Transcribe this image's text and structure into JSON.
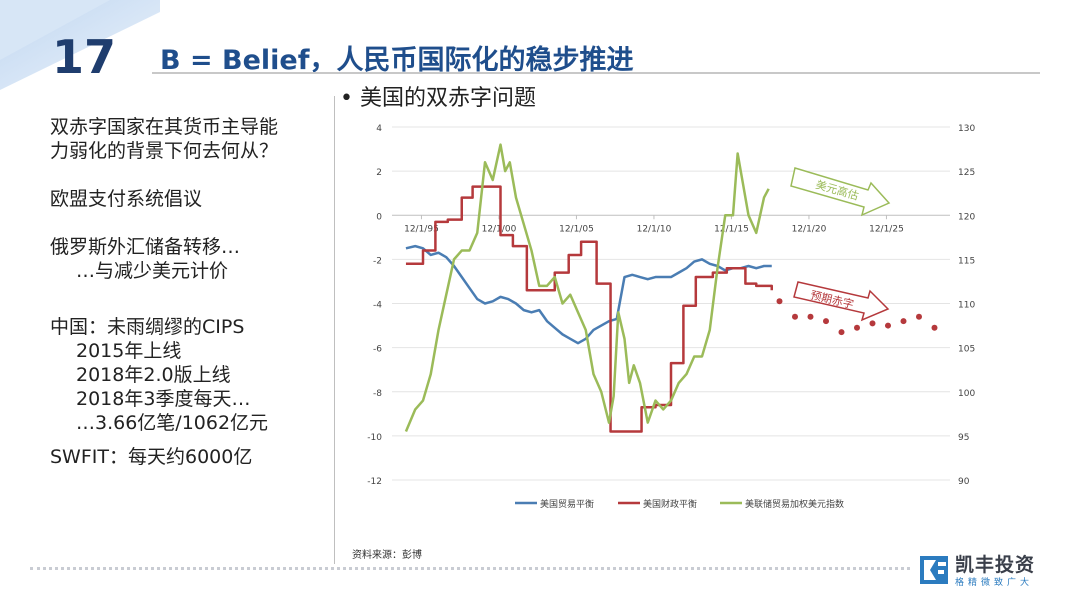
{
  "slide": {
    "number": "17",
    "title": "B = Belief，人民币国际化的稳步推进"
  },
  "left_text": {
    "lines": [
      "双赤字国家在其货币主导能",
      "力弱化的背景下何去何从？",
      "",
      "欧盟支付系统倡议",
      "",
      "俄罗斯外汇储备转移…",
      "   …与减少美元计价",
      "",
      "",
      "中国：未雨绸缪的CIPS",
      "   2015年上线",
      "   2018年2.0版上线",
      "   2018年3季度每天…",
      "   …3.66亿笔/1062亿元",
      "",
      "SWFIT：每天约6000亿"
    ]
  },
  "chart_title": "• 美国的双赤字问题",
  "source": "资料来源：彭博",
  "logo": {
    "name": "凯丰投资",
    "tagline": "格精微致广大"
  },
  "colors": {
    "trade": "#4a7db3",
    "fiscal": "#b5393c",
    "dollar": "#9bbb59",
    "forecast": "#b5393c",
    "accent": "#1f4e8c"
  },
  "chart_data": {
    "type": "line",
    "x_ticks": [
      "12/1/95",
      "12/1/00",
      "12/1/05",
      "12/1/10",
      "12/1/15",
      "12/1/20",
      "12/1/25"
    ],
    "xlim": [
      1994,
      2030
    ],
    "y_left": {
      "range": [
        -12,
        4
      ],
      "ticks": [
        4,
        2,
        0,
        -2,
        -4,
        -6,
        -8,
        -10,
        -12
      ]
    },
    "y_right": {
      "range": [
        90,
        130
      ],
      "ticks": [
        130,
        125,
        120,
        115,
        110,
        105,
        100,
        95,
        90
      ]
    },
    "series": [
      {
        "name": "美国贸易平衡",
        "axis": "left",
        "color": "#4a7db3",
        "x": [
          1994.9,
          1995.5,
          1996,
          1996.5,
          1997,
          1997.5,
          1998,
          1998.5,
          1999,
          1999.5,
          2000,
          2000.5,
          2001,
          2001.5,
          2002,
          2002.5,
          2003,
          2003.5,
          2004,
          2004.5,
          2005,
          2005.5,
          2006,
          2006.5,
          2007,
          2007.5,
          2008,
          2008.5,
          2009,
          2009.5,
          2010,
          2010.5,
          2011,
          2012,
          2012.5,
          2013,
          2013.5,
          2014,
          2014.5,
          2015,
          2015.5,
          2016,
          2016.5,
          2017,
          2017.5,
          2018,
          2018.5
        ],
        "y": [
          -1.5,
          -1.4,
          -1.5,
          -1.8,
          -1.7,
          -1.9,
          -2.3,
          -2.8,
          -3.3,
          -3.8,
          -4.0,
          -3.9,
          -3.7,
          -3.8,
          -4.0,
          -4.3,
          -4.4,
          -4.3,
          -4.8,
          -5.1,
          -5.4,
          -5.6,
          -5.8,
          -5.6,
          -5.2,
          -5.0,
          -4.8,
          -4.7,
          -2.8,
          -2.7,
          -2.8,
          -2.9,
          -2.8,
          -2.8,
          -2.6,
          -2.4,
          -2.1,
          -2.0,
          -2.2,
          -2.3,
          -2.5,
          -2.4,
          -2.4,
          -2.3,
          -2.4,
          -2.3,
          -2.3
        ]
      },
      {
        "name": "美国财政平衡",
        "axis": "left",
        "color": "#b5393c",
        "x": [
          1994.9,
          1996,
          1996.8,
          1997.6,
          1998.5,
          1999.2,
          2000.2,
          2001,
          2001.8,
          2002.7,
          2003.6,
          2004.5,
          2005.4,
          2006.2,
          2007.2,
          2008.1,
          2009,
          2010.1,
          2011,
          2012,
          2012.8,
          2013.6,
          2014.7,
          2015.6,
          2016.8,
          2017.5,
          2018.5
        ],
        "y": [
          -2.2,
          -1.6,
          -0.3,
          -0.2,
          0.8,
          1.3,
          1.3,
          -0.9,
          -1.4,
          -3.4,
          -3.4,
          -2.6,
          -1.8,
          -1.2,
          -3.1,
          -9.8,
          -9.8,
          -8.7,
          -8.6,
          -6.7,
          -4.1,
          -2.8,
          -2.6,
          -2.4,
          -3.1,
          -3.2,
          -3.4
        ]
      },
      {
        "name": "美联储贸易加权美元指数",
        "axis": "right",
        "color": "#9bbb59",
        "x": [
          1994.9,
          1995.5,
          1996,
          1996.5,
          1997,
          1997.5,
          1998,
          1998.5,
          1999,
          1999.5,
          2000,
          2000.5,
          2001,
          2001.3,
          2001.6,
          2002,
          2002.5,
          2003,
          2003.5,
          2004,
          2004.5,
          2005,
          2005.5,
          2006,
          2006.5,
          2007,
          2007.5,
          2008,
          2008.3,
          2008.6,
          2009,
          2009.3,
          2009.6,
          2010,
          2010.5,
          2011,
          2011.5,
          2012,
          2012.5,
          2013,
          2013.5,
          2014,
          2014.5,
          2015,
          2015.5,
          2016,
          2016.3,
          2016.6,
          2017,
          2017.5,
          2018,
          2018.3
        ],
        "y": [
          95.5,
          98,
          99,
          102,
          107,
          111,
          115,
          116,
          116,
          118,
          126,
          124,
          128,
          125,
          126,
          122,
          119,
          116,
          112,
          112,
          113,
          110,
          111,
          109,
          107,
          102,
          100,
          96.5,
          99.5,
          109,
          106,
          101,
          103,
          101,
          96.5,
          99,
          98,
          99,
          101,
          102,
          104,
          104,
          107,
          114,
          120,
          120,
          127,
          124,
          120,
          118,
          122,
          123
        ]
      },
      {
        "name": "预期赤字",
        "axis": "left",
        "color": "#b5393c",
        "style": "dots",
        "x": [
          2019,
          2020,
          2021,
          2022,
          2023,
          2024,
          2025,
          2026,
          2027,
          2028,
          2029
        ],
        "y": [
          -3.9,
          -4.6,
          -4.6,
          -4.8,
          -5.3,
          -5.1,
          -4.9,
          -5.0,
          -4.8,
          -4.6,
          -5.1
        ]
      }
    ],
    "annotations": [
      {
        "text": "美元高估"
      },
      {
        "text": "预期赤字"
      }
    ],
    "legend": {
      "placement": "bottom"
    }
  }
}
